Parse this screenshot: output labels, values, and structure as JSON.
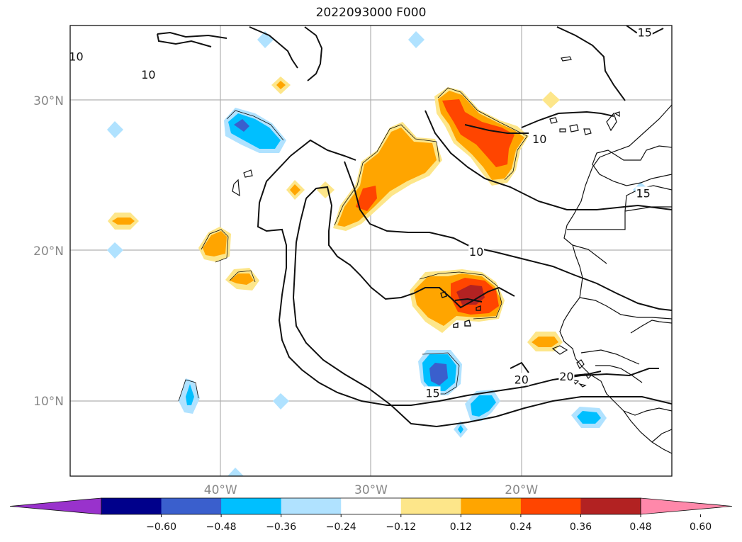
{
  "title": "2022093000 F000",
  "map": {
    "lon_range": [
      -50,
      -10
    ],
    "lat_range": [
      5,
      35
    ],
    "lon_ticks": [
      {
        "value": -40,
        "label": "40°W"
      },
      {
        "value": -30,
        "label": "30°W"
      },
      {
        "value": -20,
        "label": "20°W"
      }
    ],
    "lat_ticks": [
      {
        "value": 10,
        "label": "10°N"
      },
      {
        "value": 20,
        "label": "20°N"
      },
      {
        "value": 30,
        "label": "30°N"
      }
    ],
    "gridlines": true,
    "contour_labels": [
      {
        "text": "10",
        "lon": -49.6,
        "lat": 32.9
      },
      {
        "text": "10",
        "lon": -44.8,
        "lat": 31.7
      },
      {
        "text": "15",
        "lon": -11.8,
        "lat": 34.5
      },
      {
        "text": "10",
        "lon": -18.8,
        "lat": 27.4
      },
      {
        "text": "15",
        "lon": -11.9,
        "lat": 23.8
      },
      {
        "text": "10",
        "lon": -23.0,
        "lat": 19.9
      },
      {
        "text": "15",
        "lon": -25.9,
        "lat": 10.5
      },
      {
        "text": "20",
        "lon": -20.0,
        "lat": 11.4
      },
      {
        "text": "20",
        "lon": -17.0,
        "lat": 11.6
      }
    ]
  },
  "colorbar": {
    "extend": "both",
    "colors": [
      "#9932cc",
      "#00008b",
      "#3a5fcd",
      "#00bfff",
      "#b0e2ff",
      "#ffffff",
      "#fde68a",
      "#ffa500",
      "#ff4500",
      "#b22222",
      "#ff88aa"
    ],
    "tick_labels": [
      "−0.60",
      "−0.48",
      "−0.36",
      "−0.24",
      "−0.12",
      "0.12",
      "0.24",
      "0.36",
      "0.48",
      "0.60"
    ]
  }
}
